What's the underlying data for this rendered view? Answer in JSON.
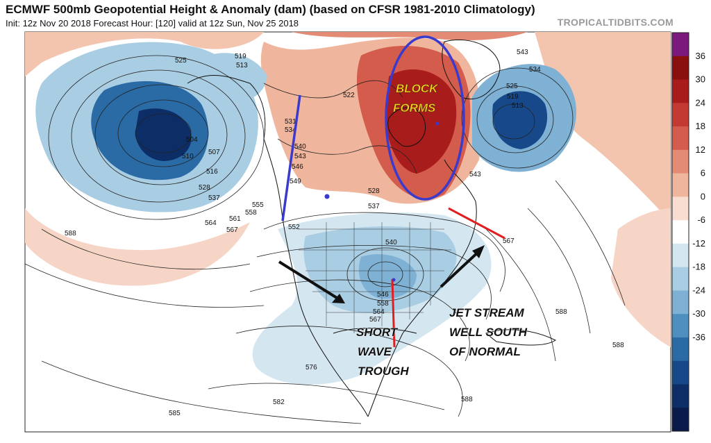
{
  "header": {
    "title": "ECMWF 500mb Geopotential Height & Anomaly (dam) (based on CFSR 1981-2010 Climatology)",
    "subtitle": "Init: 12z Nov 20 2018   Forecast Hour: [120]   valid at 12z Sun, Nov 25 2018",
    "brand": "TROPICALTIDBITS.COM"
  },
  "colorbar": {
    "ticks": [
      "36",
      "30",
      "24",
      "18",
      "12",
      "6",
      "0",
      "-6",
      "-12",
      "-18",
      "-24",
      "-30",
      "-36"
    ],
    "colors": [
      "#7b1a7b",
      "#8a1010",
      "#a81c1c",
      "#c23a32",
      "#d35c4c",
      "#e38b74",
      "#f0b59d",
      "#f9ddd0",
      "#ffffff",
      "#d4e6f0",
      "#a9cde2",
      "#7eb1d4",
      "#4f8fc0",
      "#2a6aa5",
      "#17498a",
      "#0c2d65",
      "#0a1a4a"
    ]
  },
  "contour_labels": [
    "525",
    "519",
    "513",
    "504",
    "510",
    "507",
    "516",
    "528",
    "537",
    "564",
    "561",
    "567",
    "555",
    "558",
    "588",
    "552",
    "531",
    "534",
    "540",
    "543",
    "546",
    "549",
    "522",
    "528",
    "537",
    "540",
    "546",
    "558",
    "564",
    "567",
    "576",
    "582",
    "585",
    "588",
    "588",
    "588",
    "543",
    "534",
    "525",
    "519",
    "513",
    "543",
    "567"
  ],
  "annotations": {
    "block": "BLOCK\nFORMS",
    "short_wave": "SHORT\nWAVE\nTROUGH",
    "jet": "JET STREAM\nWELL SOUTH\nOF NORMAL"
  }
}
